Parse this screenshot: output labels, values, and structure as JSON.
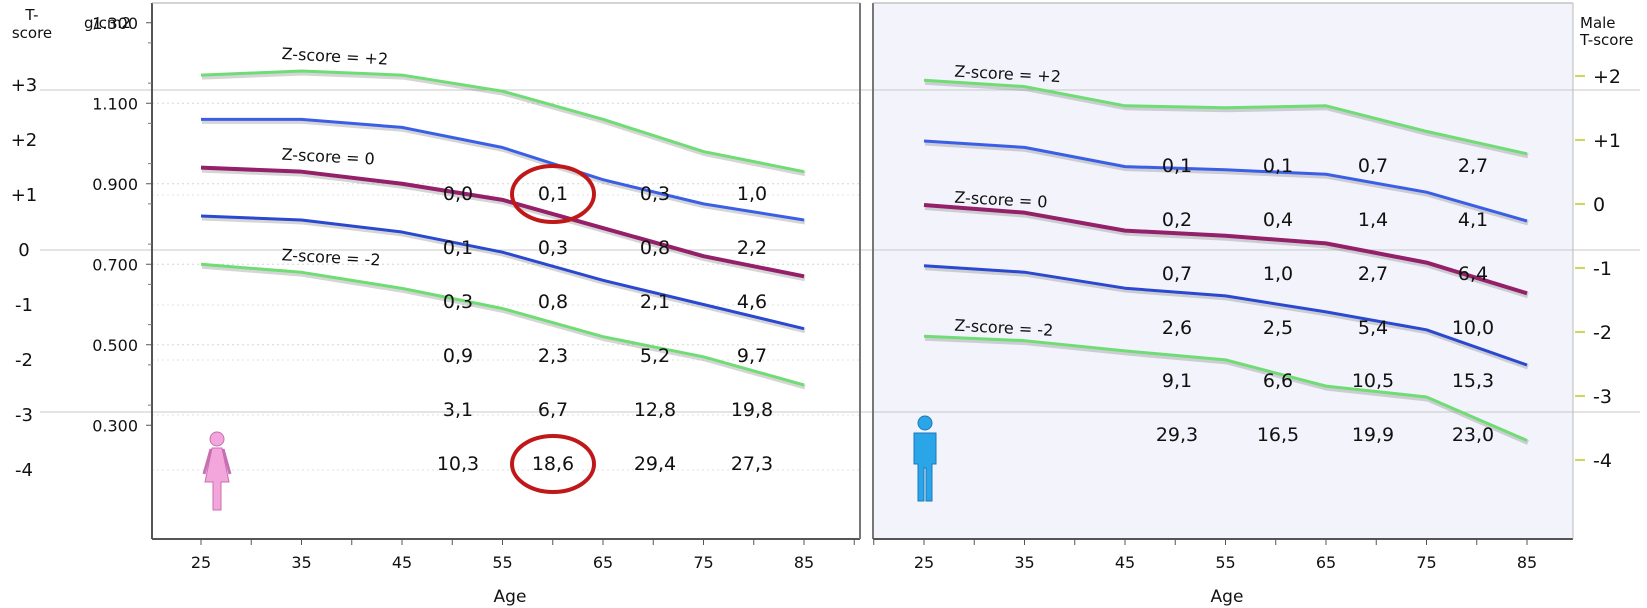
{
  "left_axis": {
    "tscore_header": "T-\nscore",
    "unit_label": "g/cm2",
    "tscore_ticks": [
      "+3",
      "+2",
      "+1",
      "0",
      "-1",
      "-2",
      "-3",
      "-4"
    ],
    "tscore_values": [
      3,
      2,
      1,
      0,
      -1,
      -2,
      -3,
      -4
    ],
    "bmd_ticks": [
      "1.300",
      "1.100",
      "0.900",
      "0.700",
      "0.500",
      "0.300"
    ],
    "bmd_values": [
      1.3,
      1.1,
      0.9,
      0.7,
      0.5,
      0.3
    ]
  },
  "right_axis": {
    "header": "Male\nT-score",
    "ticks": [
      "+2",
      "+1",
      "0",
      "-1",
      "-2",
      "-3",
      "-4"
    ],
    "values": [
      2,
      1,
      0,
      -1,
      -2,
      -3,
      -4
    ]
  },
  "chart_data": [
    {
      "type": "line",
      "panel": "female",
      "icon": "female-figure-icon",
      "xlabel": "Age",
      "ylabel": "g/cm2",
      "x": [
        25,
        35,
        45,
        55,
        65,
        75,
        85
      ],
      "xlim": [
        20,
        90
      ],
      "ylim": [
        0.3,
        1.4
      ],
      "series": [
        {
          "name": "Z-score = +2",
          "color": "#6fdc74",
          "values": [
            1.17,
            1.18,
            1.17,
            1.13,
            1.06,
            0.98,
            0.93
          ]
        },
        {
          "name": "",
          "color": "#3a5fe6",
          "values": [
            1.06,
            1.06,
            1.04,
            0.99,
            0.91,
            0.85,
            0.81
          ]
        },
        {
          "name": "Z-score = 0",
          "color": "#94206a",
          "values": [
            0.94,
            0.93,
            0.9,
            0.86,
            0.79,
            0.72,
            0.67
          ]
        },
        {
          "name": "",
          "color": "#2a48d0",
          "values": [
            0.82,
            0.81,
            0.78,
            0.73,
            0.66,
            0.6,
            0.54
          ]
        },
        {
          "name": "Z-score = -2",
          "color": "#6fdc74",
          "values": [
            0.7,
            0.68,
            0.64,
            0.59,
            0.52,
            0.47,
            0.4
          ]
        }
      ],
      "table": {
        "rows": [
          {
            "tscore": 1,
            "values": [
              "0,0",
              "0,1",
              "0,3",
              "1,0"
            ]
          },
          {
            "tscore": 0,
            "values": [
              "0,1",
              "0,3",
              "0,8",
              "2,2"
            ]
          },
          {
            "tscore": -1,
            "values": [
              "0,3",
              "0,8",
              "2,1",
              "4,6"
            ]
          },
          {
            "tscore": -2,
            "values": [
              "0,9",
              "2,3",
              "5,2",
              "9,7"
            ]
          },
          {
            "tscore": -3,
            "values": [
              "3,1",
              "6,7",
              "12,8",
              "19,8"
            ]
          },
          {
            "tscore": -4,
            "values": [
              "10,3",
              "18,6",
              "29,4",
              "27,3"
            ]
          }
        ],
        "ages": [
          50,
          60,
          70,
          80
        ]
      },
      "highlights": [
        {
          "value": "0,1",
          "age": 60,
          "tscore": 1
        },
        {
          "value": "18,6",
          "age": 60,
          "tscore": -4
        }
      ]
    },
    {
      "type": "line",
      "panel": "male",
      "icon": "male-figure-icon",
      "xlabel": "Age",
      "ylabel": "Male T-score",
      "x": [
        25,
        35,
        45,
        55,
        65,
        75,
        85
      ],
      "xlim": [
        20,
        90
      ],
      "ylim": [
        -5.2,
        2.6
      ],
      "series": [
        {
          "name": "Z-score = +2",
          "color": "#6fdc74",
          "values": [
            1.95,
            1.85,
            1.55,
            1.52,
            1.55,
            1.15,
            0.8
          ]
        },
        {
          "name": "",
          "color": "#3a5fe6",
          "values": [
            1.0,
            0.9,
            0.6,
            0.55,
            0.48,
            0.2,
            -0.25
          ]
        },
        {
          "name": "Z-score = 0",
          "color": "#94206a",
          "values": [
            0.0,
            -0.12,
            -0.4,
            -0.48,
            -0.6,
            -0.9,
            -1.38
          ]
        },
        {
          "name": "",
          "color": "#2a48d0",
          "values": [
            -0.95,
            -1.05,
            -1.3,
            -1.42,
            -1.67,
            -1.95,
            -2.5
          ]
        },
        {
          "name": "Z-score = -2",
          "color": "#6fdc74",
          "values": [
            -2.05,
            -2.12,
            -2.28,
            -2.42,
            -2.83,
            -3.0,
            -3.68
          ]
        }
      ],
      "table": {
        "rows": [
          {
            "tscore": 0.6,
            "values": [
              "0,1",
              "0,1",
              "0,7",
              "2,7"
            ]
          },
          {
            "tscore": -0.3,
            "values": [
              "0,2",
              "0,4",
              "1,4",
              "4,1"
            ]
          },
          {
            "tscore": -1.15,
            "values": [
              "0,7",
              "1,0",
              "2,7",
              "6,4"
            ]
          },
          {
            "tscore": -2.0,
            "values": [
              "2,6",
              "2,5",
              "5,4",
              "10,0"
            ]
          },
          {
            "tscore": -2.85,
            "values": [
              "9,1",
              "6,6",
              "10,5",
              "15,3"
            ]
          },
          {
            "tscore": -3.7,
            "values": [
              "29,3",
              "16,5",
              "19,9",
              "23,0"
            ]
          }
        ],
        "ages": [
          50,
          60,
          70,
          80
        ]
      }
    }
  ]
}
